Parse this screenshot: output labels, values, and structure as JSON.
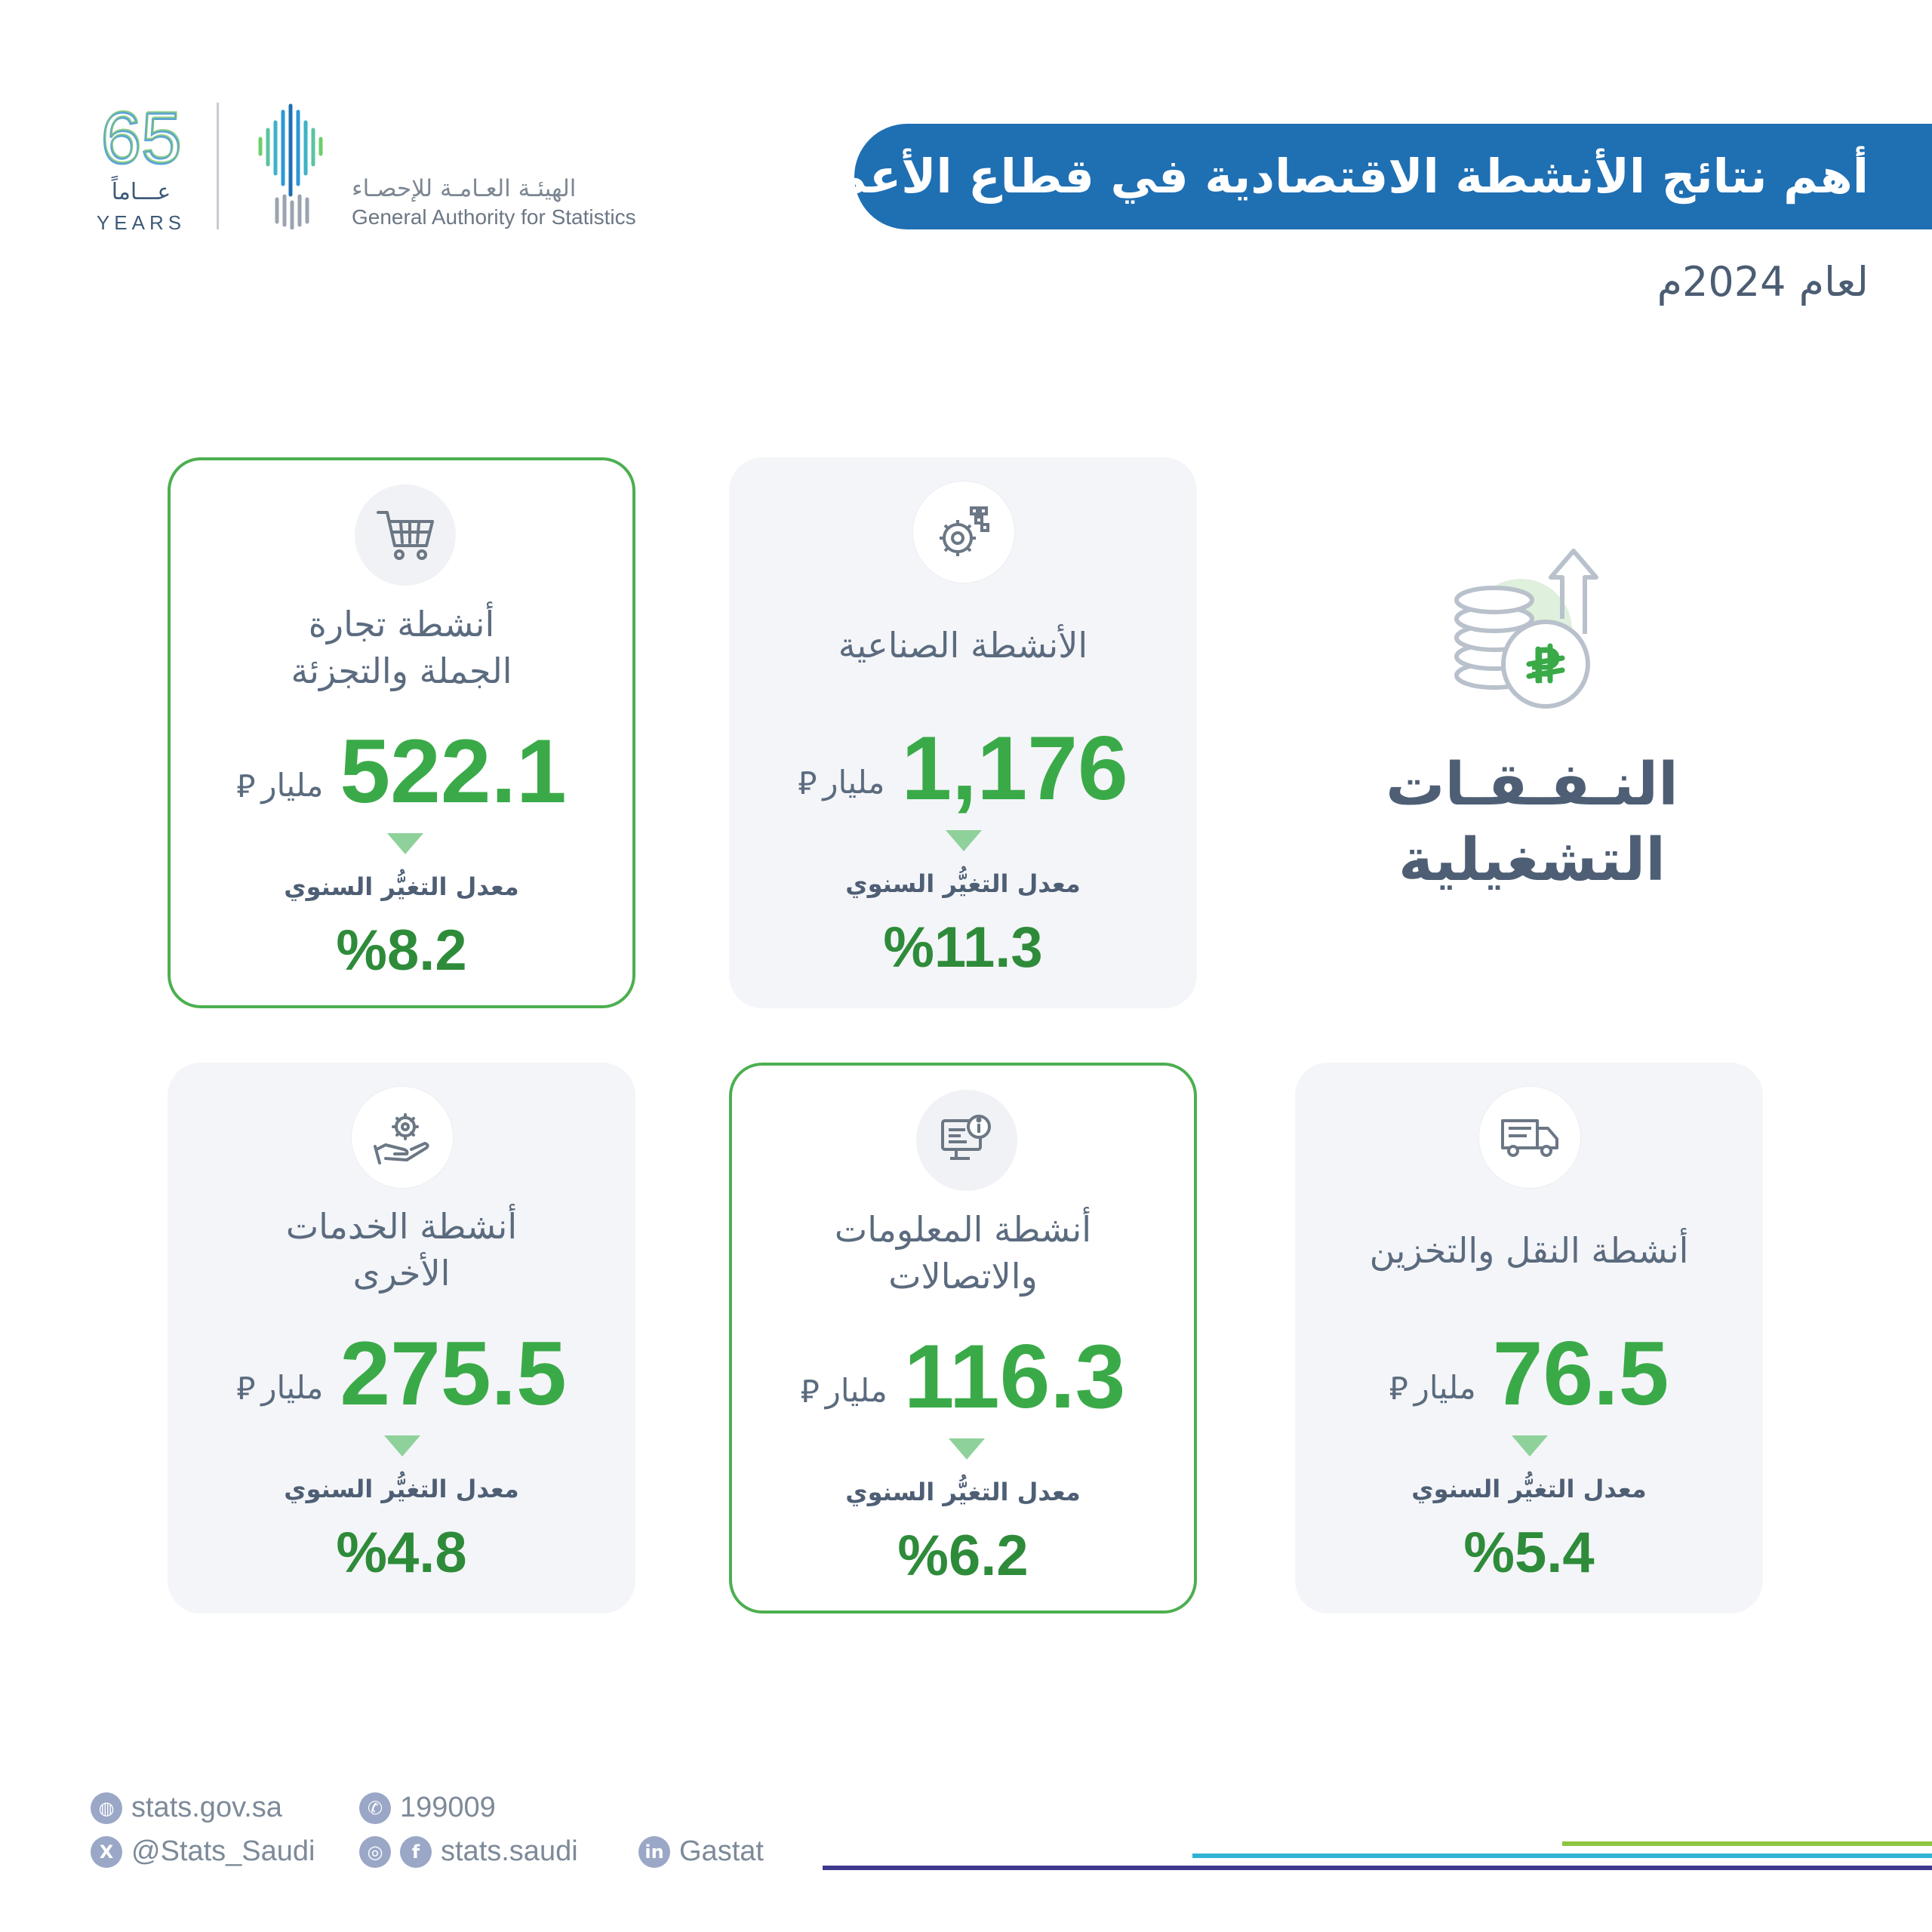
{
  "header": {
    "title": "أهم نتائج الأنشطة الاقتصادية في قطاع الأعمال",
    "subtitle": "لعام 2024م"
  },
  "logos": {
    "anniversary_number": "65",
    "anniversary_ar": "عـــاماً",
    "anniversary_en": "YEARS",
    "gastat_ar": "الهيئـة العـامـة للإحصـاء",
    "gastat_en": "General Authority for Statistics"
  },
  "section": {
    "title_line1": "النـفـقـات",
    "title_line2": "التشغيلية",
    "icon": "coins-riyal-up-arrow-icon"
  },
  "common": {
    "unit": "مليار",
    "currency_symbol": "⃁",
    "rate_label": "معدل التغيُّر السنوي"
  },
  "cards": [
    {
      "title_line1": "أنشطة تجارة",
      "title_line2": "الجملة والتجزئة",
      "value": "522.1",
      "rate": "%8.2",
      "icon": "shopping-cart-icon"
    },
    {
      "title_line1": "الأنشطة الصناعية",
      "title_line2": "",
      "value": "1,176",
      "rate": "%11.3",
      "icon": "gears-icon"
    },
    {
      "title_line1": "أنشطة الخدمات",
      "title_line2": "الأخرى",
      "value": "275.5",
      "rate": "%4.8",
      "icon": "hand-gear-icon"
    },
    {
      "title_line1": "أنشطة المعلومات",
      "title_line2": "والاتصالات",
      "value": "116.3",
      "rate": "%6.2",
      "icon": "computer-info-icon"
    },
    {
      "title_line1": "أنشطة النقل والتخزين",
      "title_line2": "",
      "value": "76.5",
      "rate": "%5.4",
      "icon": "truck-icon"
    }
  ],
  "footer": {
    "website": "stats.gov.sa",
    "phone": "199009",
    "x_handle": "@Stats_Saudi",
    "social": "stats.saudi",
    "linkedin": "Gastat"
  },
  "colors": {
    "banner": "#1f6fb3",
    "value_green": "#3aaa48",
    "rate_green": "#2e8b3a",
    "highlight_border": "#4caf50"
  }
}
